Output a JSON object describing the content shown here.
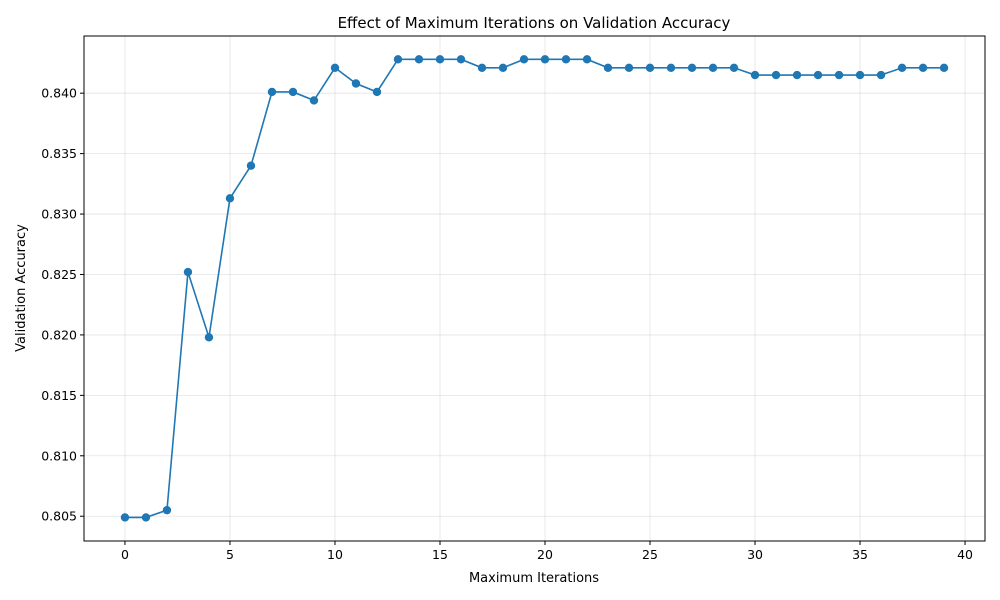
{
  "chart_data": {
    "type": "line",
    "title": "Effect of Maximum Iterations on Validation Accuracy",
    "xlabel": "Maximum Iterations",
    "ylabel": "Validation Accuracy",
    "xlim": [
      -1.95,
      40.95
    ],
    "ylim": [
      0.80295,
      0.84473
    ],
    "xticks": [
      0,
      5,
      10,
      15,
      20,
      25,
      30,
      35,
      40
    ],
    "yticks": [
      0.805,
      0.81,
      0.815,
      0.82,
      0.825,
      0.83,
      0.835,
      0.84
    ],
    "grid": true,
    "series": [
      {
        "color": "#1f77b4",
        "marker": "circle",
        "x": [
          0,
          1,
          2,
          3,
          4,
          5,
          6,
          7,
          8,
          9,
          10,
          11,
          12,
          13,
          14,
          15,
          16,
          17,
          18,
          19,
          20,
          21,
          22,
          23,
          24,
          25,
          26,
          27,
          28,
          29,
          30,
          31,
          32,
          33,
          34,
          35,
          36,
          37,
          38,
          39
        ],
        "y": [
          0.8049,
          0.8049,
          0.8055,
          0.8252,
          0.8198,
          0.8313,
          0.834,
          0.8401,
          0.8401,
          0.8394,
          0.8421,
          0.8408,
          0.8401,
          0.8428,
          0.8428,
          0.8428,
          0.8428,
          0.8421,
          0.8421,
          0.8428,
          0.8428,
          0.8428,
          0.8428,
          0.8421,
          0.8421,
          0.8421,
          0.8421,
          0.8421,
          0.8421,
          0.8421,
          0.8415,
          0.8415,
          0.8415,
          0.8415,
          0.8415,
          0.8415,
          0.8415,
          0.8421,
          0.8421,
          0.8421
        ]
      }
    ]
  }
}
